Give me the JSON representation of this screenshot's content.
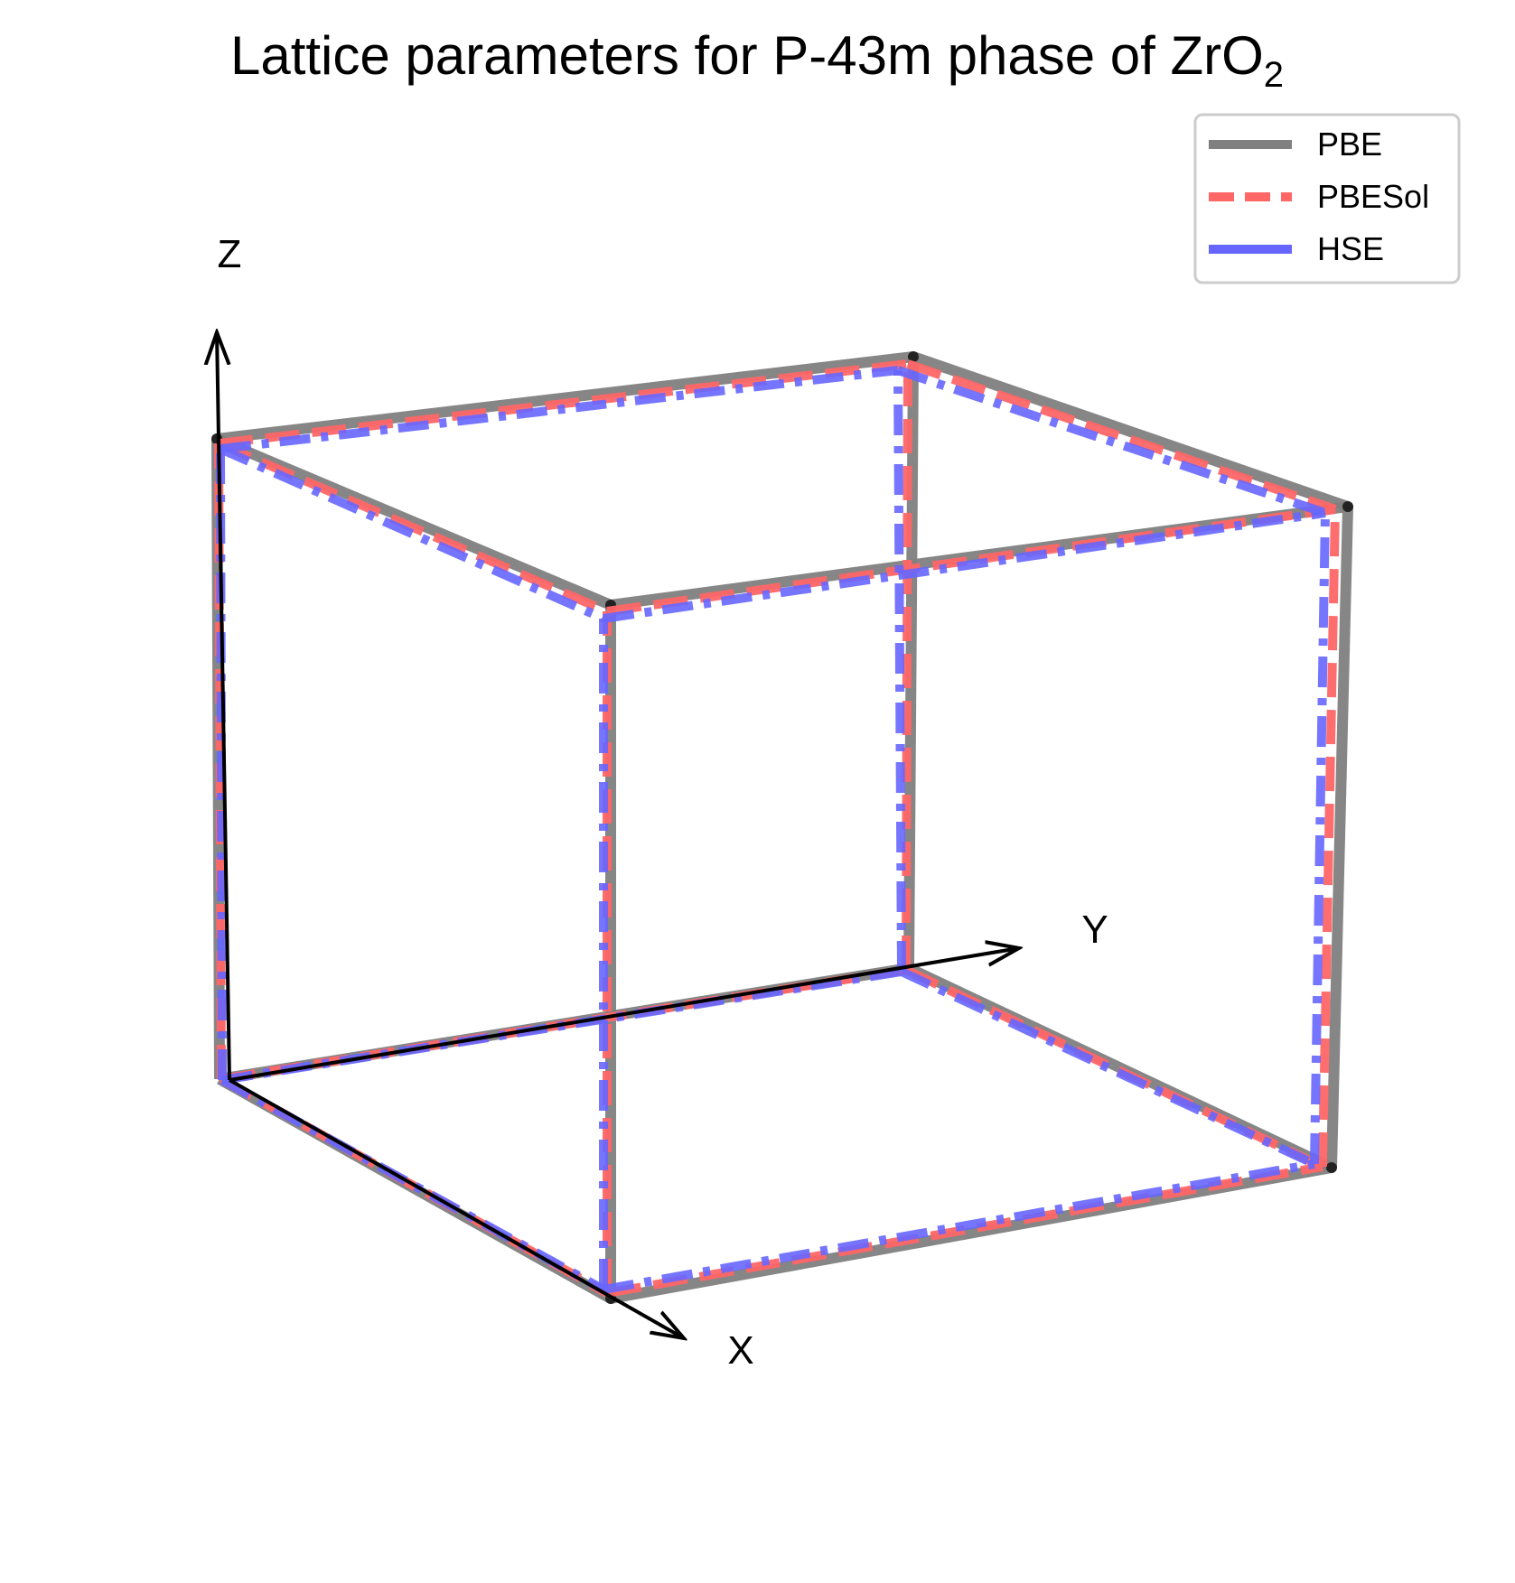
{
  "title": {
    "main": "Lattice parameters for P-43m phase of ZrO",
    "subscript": "2"
  },
  "axes": {
    "x_label": "X",
    "y_label": "Y",
    "z_label": "Z"
  },
  "legend": {
    "placement": "upper right",
    "entries": [
      {
        "label": "PBE",
        "color": "#808080",
        "style": "solid"
      },
      {
        "label": "PBESol",
        "color": "#ff6666",
        "style": "dashed"
      },
      {
        "label": "HSE",
        "color": "#6666ff",
        "style": "dash-dot"
      }
    ]
  },
  "colors": {
    "pbe": "#808080",
    "pbesol": "#ff6666",
    "hse": "#6666ff",
    "axis_arrow": "#000000"
  }
}
